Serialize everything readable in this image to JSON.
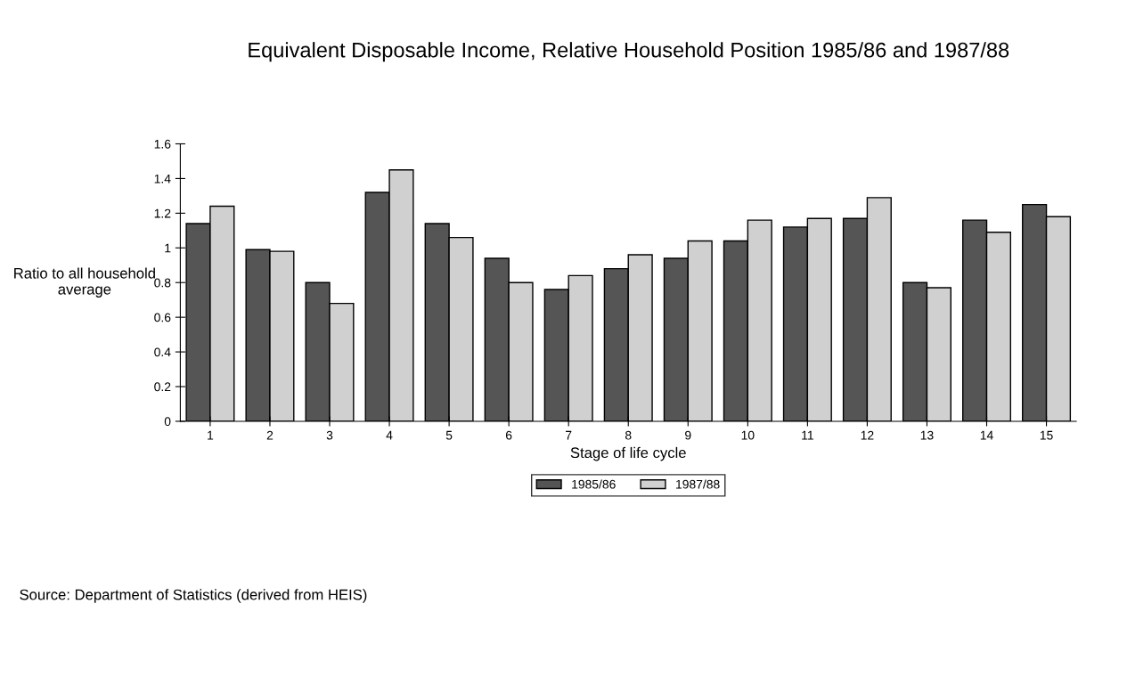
{
  "chart_data": {
    "type": "bar",
    "title": "Equivalent Disposable Income, Relative Household Position 1985/86 and 1987/88",
    "categories": [
      "1",
      "2",
      "3",
      "4",
      "5",
      "6",
      "7",
      "8",
      "9",
      "10",
      "11",
      "12",
      "13",
      "14",
      "15"
    ],
    "series": [
      {
        "name": "1985/86",
        "color": "#555555",
        "values": [
          1.14,
          0.99,
          0.8,
          1.32,
          1.14,
          0.94,
          0.76,
          0.88,
          0.94,
          1.04,
          1.12,
          1.17,
          0.8,
          1.16,
          1.25
        ]
      },
      {
        "name": "1987/88",
        "color": "#d0d0d0",
        "values": [
          1.24,
          0.98,
          0.68,
          1.45,
          1.06,
          0.8,
          0.84,
          0.96,
          1.04,
          1.16,
          1.17,
          1.29,
          0.77,
          1.09,
          1.18
        ]
      }
    ],
    "xlabel": "Stage of life cycle",
    "ylabel": "Ratio to all household average",
    "ylim": [
      0,
      1.6
    ],
    "yticks": [
      0,
      0.2,
      0.4,
      0.6,
      0.8,
      1,
      1.2,
      1.4,
      1.6
    ],
    "grid": false,
    "legend": "bottom",
    "annotations": [
      "Source: Department of Statistics (derived from HEIS)"
    ]
  }
}
